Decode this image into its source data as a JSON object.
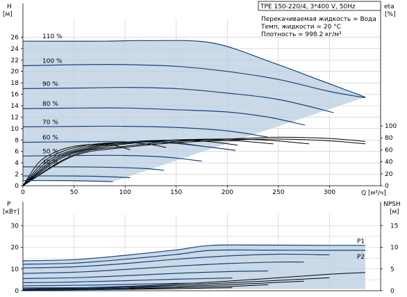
{
  "chart_data": [
    {
      "type": "line",
      "title": "TPE 150-220/4, 3*400 V, 50Hz",
      "info": [
        "Перекачиваемая жидкость = Вода",
        "Темп. жидкости = 20 °C",
        "Плотность = 998.2 кг/м³"
      ],
      "ylabel_unit": "H",
      "ylabel_dim": "[м]",
      "y2label_unit": "eta",
      "y2label_dim": "[%]",
      "xlabel": "Q [м³/ч]",
      "xlim": [
        0,
        350
      ],
      "ylim": [
        0,
        28
      ],
      "y2lim": [
        0,
        100
      ],
      "xticks": [
        "0",
        "50",
        "100",
        "150",
        "200",
        "250",
        "300"
      ],
      "yticks": [
        "0",
        "2",
        "4",
        "6",
        "8",
        "10",
        "12",
        "14",
        "16",
        "18",
        "20",
        "22",
        "24",
        "26"
      ],
      "y2ticks": [
        "0",
        "20",
        "40",
        "60",
        "80",
        "100"
      ],
      "grid": true,
      "series": [
        {
          "name": "110 %",
          "x": [
            0,
            80,
            120,
            185,
            245,
            290,
            335
          ],
          "y": [
            25.3,
            25.3,
            25.4,
            25.0,
            21.5,
            18.5,
            15.5
          ]
        },
        {
          "name": "100 %",
          "x": [
            0,
            60,
            100,
            150,
            200,
            250,
            300,
            335
          ],
          "y": [
            21.0,
            21.2,
            21.2,
            20.9,
            20.0,
            18.6,
            16.5,
            15.4
          ]
        },
        {
          "name": "90 %",
          "x": [
            0,
            60,
            100,
            150,
            200,
            250,
            304
          ],
          "y": [
            17.0,
            17.1,
            17.2,
            17.0,
            16.2,
            15.1,
            12.8
          ]
        },
        {
          "name": "80 %",
          "x": [
            0,
            60,
            100,
            150,
            200,
            240,
            276
          ],
          "y": [
            13.5,
            13.6,
            13.6,
            13.3,
            12.9,
            12.0,
            10.6
          ]
        },
        {
          "name": "70 %",
          "x": [
            0,
            60,
            100,
            150,
            200,
            240
          ],
          "y": [
            10.3,
            10.4,
            10.4,
            10.2,
            9.6,
            8.5
          ]
        },
        {
          "name": "60 %",
          "x": [
            0,
            60,
            100,
            150,
            208
          ],
          "y": [
            7.6,
            7.7,
            7.7,
            7.4,
            6.2
          ]
        },
        {
          "name": "50 %",
          "x": [
            0,
            60,
            100,
            140,
            175
          ],
          "y": [
            5.2,
            5.3,
            5.3,
            5.0,
            4.3
          ]
        },
        {
          "name": "40 %",
          "x": [
            0,
            50,
            90,
            120,
            138
          ],
          "y": [
            3.3,
            3.3,
            3.2,
            3.0,
            2.7
          ]
        },
        {
          "name": "",
          "x": [
            0,
            50,
            80,
            105
          ],
          "y": [
            1.7,
            1.7,
            1.6,
            1.4
          ]
        },
        {
          "name": "",
          "x": [
            0,
            40,
            70,
            88
          ],
          "y": [
            0.9,
            0.9,
            0.8,
            0.7
          ]
        }
      ],
      "eta_series": [
        {
          "x": [
            0,
            50,
            100,
            150,
            200,
            250,
            300,
            335
          ],
          "y": [
            0,
            52,
            66,
            74,
            78,
            81,
            79,
            74
          ]
        },
        {
          "x": [
            0,
            50,
            100,
            150,
            200,
            250,
            300,
            335
          ],
          "y": [
            0,
            50,
            64,
            72,
            76,
            78,
            75,
            70
          ]
        },
        {
          "x": [
            0,
            40,
            80,
            120,
            160,
            200,
            240,
            280
          ],
          "y": [
            0,
            48,
            65,
            73,
            77,
            78,
            76,
            70
          ]
        },
        {
          "x": [
            0,
            35,
            70,
            105,
            140,
            175,
            210,
            245
          ],
          "y": [
            0,
            46,
            64,
            72,
            76,
            77,
            75,
            70
          ]
        },
        {
          "x": [
            0,
            30,
            60,
            90,
            120,
            150,
            180,
            210
          ],
          "y": [
            0,
            44,
            62,
            71,
            75,
            76,
            74,
            68
          ]
        },
        {
          "x": [
            0,
            25,
            50,
            75,
            100,
            125,
            150,
            175
          ],
          "y": [
            0,
            42,
            60,
            69,
            73,
            74,
            72,
            66
          ]
        },
        {
          "x": [
            0,
            20,
            40,
            60,
            80,
            100,
            120,
            140
          ],
          "y": [
            0,
            40,
            58,
            67,
            71,
            72,
            70,
            64
          ]
        },
        {
          "x": [
            0,
            15,
            30,
            45,
            60,
            75,
            90,
            105
          ],
          "y": [
            0,
            38,
            55,
            64,
            68,
            69,
            67,
            60
          ]
        }
      ]
    },
    {
      "type": "line",
      "ylabel_unit": "P",
      "ylabel_dim": "[кВт]",
      "y2label_unit": "NPSH",
      "y2label_dim": "[м]",
      "xlim": [
        0,
        350
      ],
      "ylim": [
        0,
        32
      ],
      "y2lim": [
        0,
        16
      ],
      "yticks": [
        "0",
        "10",
        "20",
        "30"
      ],
      "y2ticks": [
        "0",
        "5",
        "10",
        "15"
      ],
      "grid": true,
      "series": [
        {
          "name": "P1",
          "x": [
            0,
            50,
            100,
            150,
            185,
            240,
            300,
            335
          ],
          "y": [
            13.8,
            14.3,
            16.3,
            18.8,
            20.9,
            21.0,
            20.9,
            20.9
          ]
        },
        {
          "name": "P2",
          "x": [
            0,
            50,
            100,
            150,
            185,
            240,
            300,
            335
          ],
          "y": [
            12.2,
            12.7,
            14.5,
            16.7,
            18.6,
            18.7,
            18.6,
            18.6
          ]
        },
        {
          "name": "",
          "x": [
            0,
            50,
            100,
            150,
            200,
            250,
            300
          ],
          "y": [
            10.5,
            11.0,
            12.5,
            14.5,
            16.0,
            16.8,
            16.5
          ]
        },
        {
          "name": "",
          "x": [
            0,
            50,
            100,
            150,
            200,
            250,
            275
          ],
          "y": [
            8.0,
            8.5,
            9.8,
            11.3,
            12.5,
            13.2,
            13.2
          ]
        },
        {
          "name": "",
          "x": [
            0,
            50,
            100,
            150,
            200,
            240
          ],
          "y": [
            5.6,
            6.0,
            6.9,
            8.0,
            8.8,
            9.1
          ]
        },
        {
          "name": "",
          "x": [
            0,
            50,
            100,
            150,
            205
          ],
          "y": [
            3.7,
            4.0,
            4.6,
            5.3,
            5.9
          ]
        },
        {
          "name": "",
          "x": [
            0,
            50,
            100,
            140,
            175
          ],
          "y": [
            2.3,
            2.5,
            2.9,
            3.3,
            3.6
          ]
        },
        {
          "name": "",
          "x": [
            0,
            50,
            100,
            138
          ],
          "y": [
            1.3,
            1.4,
            1.6,
            1.8
          ]
        },
        {
          "name": "",
          "x": [
            0,
            50,
            105
          ],
          "y": [
            0.6,
            0.7,
            0.8
          ]
        }
      ],
      "npsh_series": [
        {
          "x": [
            0,
            100,
            200,
            300,
            335
          ],
          "y": [
            0.4,
            1.0,
            2.2,
            3.8,
            4.2
          ]
        },
        {
          "x": [
            0,
            100,
            200,
            300
          ],
          "y": [
            0.3,
            0.8,
            1.8,
            3.0
          ]
        },
        {
          "x": [
            0,
            100,
            200,
            275
          ],
          "y": [
            0.2,
            0.6,
            1.4,
            2.2
          ]
        },
        {
          "x": [
            0,
            100,
            200,
            240
          ],
          "y": [
            0.15,
            0.45,
            1.0,
            1.4
          ]
        },
        {
          "x": [
            0,
            100,
            205
          ],
          "y": [
            0.1,
            0.3,
            0.7
          ]
        }
      ]
    }
  ]
}
